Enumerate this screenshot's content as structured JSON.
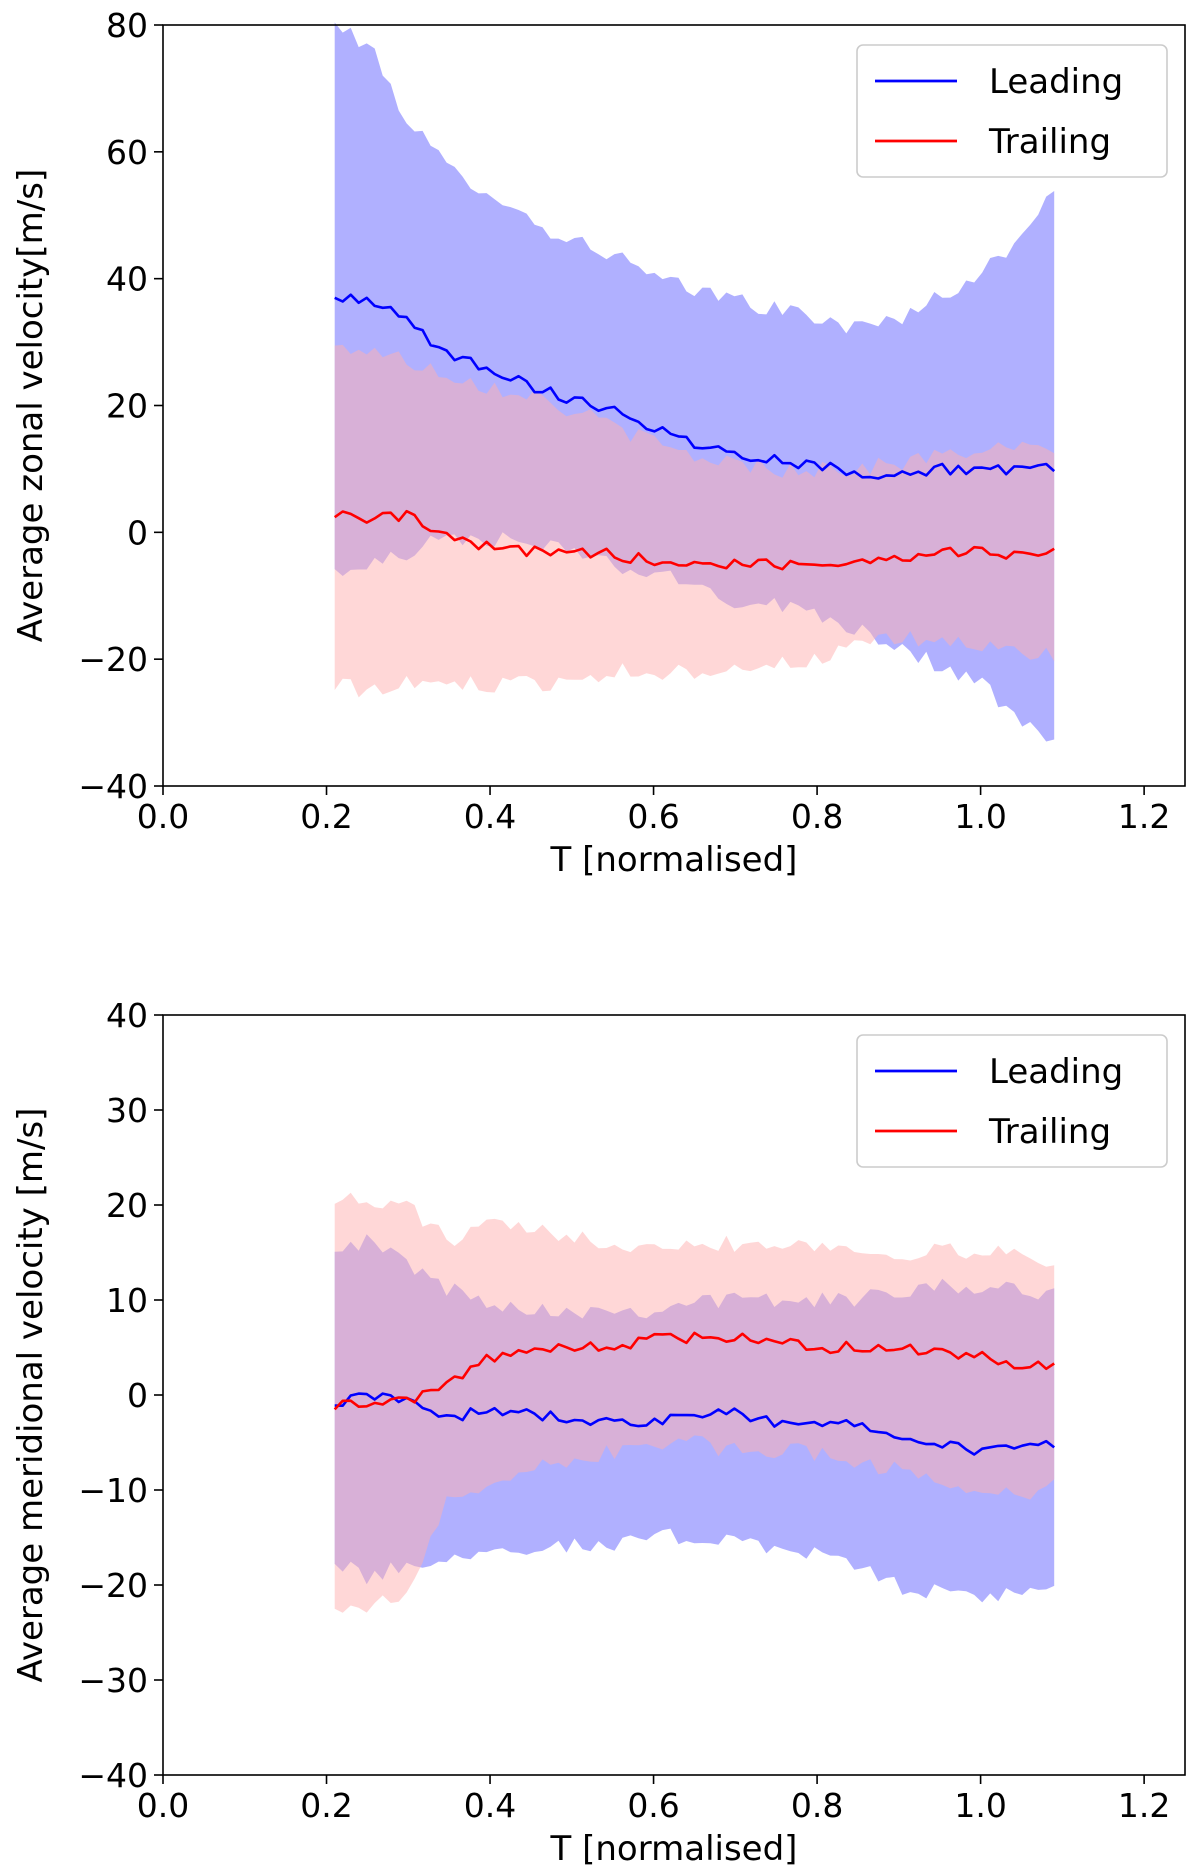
{
  "chart_data": [
    {
      "type": "line",
      "id": "zonal",
      "title": "",
      "xlabel": "T [normalised]",
      "ylabel": "Average zonal velocity[m/s]",
      "xlim": [
        0.0,
        1.25
      ],
      "ylim": [
        -40,
        80
      ],
      "xticks": [
        0.0,
        0.2,
        0.4,
        0.6,
        0.8,
        1.0,
        1.2
      ],
      "yticks": [
        -40,
        -20,
        0,
        20,
        40,
        60,
        80
      ],
      "xtick_labels": [
        "0.0",
        "0.2",
        "0.4",
        "0.6",
        "0.8",
        "1.0",
        "1.2"
      ],
      "ytick_labels": [
        "−40",
        "−20",
        "0",
        "20",
        "40",
        "60",
        "80"
      ],
      "legend_position": "top-right",
      "x_range": [
        0.21,
        1.09
      ],
      "series": [
        {
          "name": "Leading",
          "color": "#0000ff",
          "band_color": "#b0b0ff",
          "mean": [
            [
              0.21,
              37
            ],
            [
              0.25,
              37
            ],
            [
              0.3,
              33
            ],
            [
              0.35,
              28
            ],
            [
              0.4,
              26
            ],
            [
              0.45,
              23
            ],
            [
              0.5,
              21
            ],
            [
              0.55,
              19.5
            ],
            [
              0.6,
              16.5
            ],
            [
              0.65,
              14
            ],
            [
              0.7,
              12.5
            ],
            [
              0.75,
              11.5
            ],
            [
              0.8,
              10.5
            ],
            [
              0.85,
              9.5
            ],
            [
              0.9,
              9
            ],
            [
              0.95,
              10
            ],
            [
              1.0,
              10
            ],
            [
              1.05,
              9.5
            ],
            [
              1.09,
              10.5
            ]
          ],
          "upper": [
            [
              0.21,
              80
            ],
            [
              0.25,
              77
            ],
            [
              0.3,
              65
            ],
            [
              0.35,
              57
            ],
            [
              0.4,
              54
            ],
            [
              0.45,
              49
            ],
            [
              0.5,
              46
            ],
            [
              0.55,
              44
            ],
            [
              0.6,
              40
            ],
            [
              0.65,
              38
            ],
            [
              0.7,
              37
            ],
            [
              0.75,
              35
            ],
            [
              0.8,
              34
            ],
            [
              0.85,
              32
            ],
            [
              0.9,
              34
            ],
            [
              0.95,
              37
            ],
            [
              1.0,
              41
            ],
            [
              1.05,
              46
            ],
            [
              1.09,
              55
            ]
          ],
          "lower": [
            [
              0.21,
              -6
            ],
            [
              0.25,
              -6
            ],
            [
              0.3,
              -3
            ],
            [
              0.35,
              -1
            ],
            [
              0.4,
              -1
            ],
            [
              0.45,
              -2
            ],
            [
              0.5,
              -3
            ],
            [
              0.55,
              -5
            ],
            [
              0.6,
              -7
            ],
            [
              0.65,
              -8
            ],
            [
              0.7,
              -11
            ],
            [
              0.75,
              -11
            ],
            [
              0.8,
              -13
            ],
            [
              0.85,
              -15
            ],
            [
              0.9,
              -18
            ],
            [
              0.95,
              -21
            ],
            [
              1.0,
              -24
            ],
            [
              1.05,
              -30
            ],
            [
              1.09,
              -34
            ]
          ]
        },
        {
          "name": "Trailing",
          "color": "#ff0000",
          "band_color": "#ffb0b0",
          "mean": [
            [
              0.21,
              3
            ],
            [
              0.25,
              2
            ],
            [
              0.3,
              2.5
            ],
            [
              0.35,
              -1
            ],
            [
              0.4,
              -2.5
            ],
            [
              0.45,
              -3
            ],
            [
              0.5,
              -3
            ],
            [
              0.55,
              -3.5
            ],
            [
              0.6,
              -4.5
            ],
            [
              0.65,
              -5
            ],
            [
              0.7,
              -5
            ],
            [
              0.75,
              -5
            ],
            [
              0.8,
              -5
            ],
            [
              0.85,
              -4.5
            ],
            [
              0.9,
              -4
            ],
            [
              0.95,
              -3
            ],
            [
              1.0,
              -3
            ],
            [
              1.05,
              -3.5
            ],
            [
              1.09,
              -3
            ]
          ],
          "upper": [
            [
              0.21,
              29
            ],
            [
              0.25,
              29
            ],
            [
              0.3,
              27
            ],
            [
              0.35,
              25
            ],
            [
              0.4,
              23
            ],
            [
              0.45,
              22
            ],
            [
              0.5,
              19
            ],
            [
              0.55,
              17
            ],
            [
              0.6,
              14
            ],
            [
              0.65,
              12
            ],
            [
              0.7,
              11
            ],
            [
              0.75,
              10
            ],
            [
              0.8,
              10
            ],
            [
              0.85,
              10
            ],
            [
              0.9,
              11
            ],
            [
              0.95,
              12
            ],
            [
              1.0,
              13
            ],
            [
              1.05,
              13
            ],
            [
              1.09,
              13
            ]
          ],
          "lower": [
            [
              0.21,
              -24
            ],
            [
              0.25,
              -25
            ],
            [
              0.3,
              -24
            ],
            [
              0.35,
              -24
            ],
            [
              0.4,
              -24
            ],
            [
              0.45,
              -24
            ],
            [
              0.5,
              -23
            ],
            [
              0.55,
              -22
            ],
            [
              0.6,
              -22
            ],
            [
              0.65,
              -22
            ],
            [
              0.7,
              -21
            ],
            [
              0.75,
              -21
            ],
            [
              0.8,
              -20
            ],
            [
              0.85,
              -18
            ],
            [
              0.9,
              -17
            ],
            [
              0.95,
              -17
            ],
            [
              1.0,
              -18
            ],
            [
              1.05,
              -19
            ],
            [
              1.09,
              -19
            ]
          ]
        }
      ]
    },
    {
      "type": "line",
      "id": "meridional",
      "title": "",
      "xlabel": "T [normalised]",
      "ylabel": "Average meridional velocity [m/s]",
      "xlim": [
        0.0,
        1.25
      ],
      "ylim": [
        -40,
        40
      ],
      "xticks": [
        0.0,
        0.2,
        0.4,
        0.6,
        0.8,
        1.0,
        1.2
      ],
      "yticks": [
        -40,
        -30,
        -20,
        -10,
        0,
        10,
        20,
        30,
        40
      ],
      "xtick_labels": [
        "0.0",
        "0.2",
        "0.4",
        "0.6",
        "0.8",
        "1.0",
        "1.2"
      ],
      "ytick_labels": [
        "−40",
        "−30",
        "−20",
        "−10",
        "0",
        "10",
        "20",
        "30",
        "40"
      ],
      "legend_position": "top-right",
      "x_range": [
        0.21,
        1.09
      ],
      "series": [
        {
          "name": "Leading",
          "color": "#0000ff",
          "band_color": "#b0b0ff",
          "mean": [
            [
              0.21,
              -1
            ],
            [
              0.25,
              0
            ],
            [
              0.3,
              -0.5
            ],
            [
              0.35,
              -2.5
            ],
            [
              0.4,
              -1.5
            ],
            [
              0.45,
              -2
            ],
            [
              0.5,
              -2.5
            ],
            [
              0.55,
              -3
            ],
            [
              0.6,
              -3
            ],
            [
              0.65,
              -2
            ],
            [
              0.7,
              -2
            ],
            [
              0.75,
              -3
            ],
            [
              0.8,
              -3
            ],
            [
              0.85,
              -3
            ],
            [
              0.9,
              -4
            ],
            [
              0.95,
              -5
            ],
            [
              1.0,
              -6
            ],
            [
              1.05,
              -5.5
            ],
            [
              1.09,
              -5
            ]
          ],
          "upper": [
            [
              0.21,
              16
            ],
            [
              0.25,
              16
            ],
            [
              0.3,
              14
            ],
            [
              0.35,
              11
            ],
            [
              0.4,
              10
            ],
            [
              0.45,
              9
            ],
            [
              0.5,
              9
            ],
            [
              0.55,
              9
            ],
            [
              0.6,
              9
            ],
            [
              0.65,
              10
            ],
            [
              0.7,
              10
            ],
            [
              0.75,
              10
            ],
            [
              0.8,
              10
            ],
            [
              0.85,
              10
            ],
            [
              0.9,
              11
            ],
            [
              0.95,
              12
            ],
            [
              1.0,
              11
            ],
            [
              1.05,
              11
            ],
            [
              1.09,
              11
            ]
          ],
          "lower": [
            [
              0.21,
              -18
            ],
            [
              0.25,
              -19
            ],
            [
              0.3,
              -18
            ],
            [
              0.35,
              -17
            ],
            [
              0.4,
              -16
            ],
            [
              0.45,
              -16
            ],
            [
              0.5,
              -16
            ],
            [
              0.55,
              -16
            ],
            [
              0.6,
              -15
            ],
            [
              0.65,
              -15
            ],
            [
              0.7,
              -15
            ],
            [
              0.75,
              -16
            ],
            [
              0.8,
              -17
            ],
            [
              0.85,
              -18
            ],
            [
              0.9,
              -20
            ],
            [
              0.95,
              -21
            ],
            [
              1.0,
              -21
            ],
            [
              1.05,
              -21
            ],
            [
              1.09,
              -21
            ]
          ]
        },
        {
          "name": "Trailing",
          "color": "#ff0000",
          "band_color": "#ffb0b0",
          "mean": [
            [
              0.21,
              -1
            ],
            [
              0.25,
              -1
            ],
            [
              0.3,
              -0.5
            ],
            [
              0.35,
              1
            ],
            [
              0.4,
              4
            ],
            [
              0.45,
              5
            ],
            [
              0.5,
              5
            ],
            [
              0.55,
              5
            ],
            [
              0.6,
              6
            ],
            [
              0.65,
              6
            ],
            [
              0.7,
              6
            ],
            [
              0.75,
              5.5
            ],
            [
              0.8,
              5
            ],
            [
              0.85,
              5
            ],
            [
              0.9,
              5
            ],
            [
              0.95,
              4.5
            ],
            [
              1.0,
              4
            ],
            [
              1.05,
              3
            ],
            [
              1.09,
              3
            ]
          ],
          "upper": [
            [
              0.21,
              21
            ],
            [
              0.25,
              20
            ],
            [
              0.3,
              20
            ],
            [
              0.35,
              16
            ],
            [
              0.4,
              18
            ],
            [
              0.45,
              17
            ],
            [
              0.5,
              17
            ],
            [
              0.55,
              16
            ],
            [
              0.6,
              16
            ],
            [
              0.65,
              16
            ],
            [
              0.7,
              16
            ],
            [
              0.75,
              16
            ],
            [
              0.8,
              16
            ],
            [
              0.85,
              15
            ],
            [
              0.9,
              15
            ],
            [
              0.95,
              15
            ],
            [
              1.0,
              15
            ],
            [
              1.05,
              15
            ],
            [
              1.09,
              13
            ]
          ],
          "lower": [
            [
              0.21,
              -22
            ],
            [
              0.25,
              -22
            ],
            [
              0.3,
              -21
            ],
            [
              0.35,
              -11
            ],
            [
              0.4,
              -9
            ],
            [
              0.45,
              -8
            ],
            [
              0.5,
              -7
            ],
            [
              0.55,
              -6
            ],
            [
              0.6,
              -5
            ],
            [
              0.65,
              -5
            ],
            [
              0.7,
              -6
            ],
            [
              0.75,
              -6
            ],
            [
              0.8,
              -6
            ],
            [
              0.85,
              -7
            ],
            [
              0.9,
              -8
            ],
            [
              0.95,
              -9
            ],
            [
              1.0,
              -10
            ],
            [
              1.05,
              -11
            ],
            [
              1.09,
              -8
            ]
          ]
        }
      ]
    }
  ]
}
